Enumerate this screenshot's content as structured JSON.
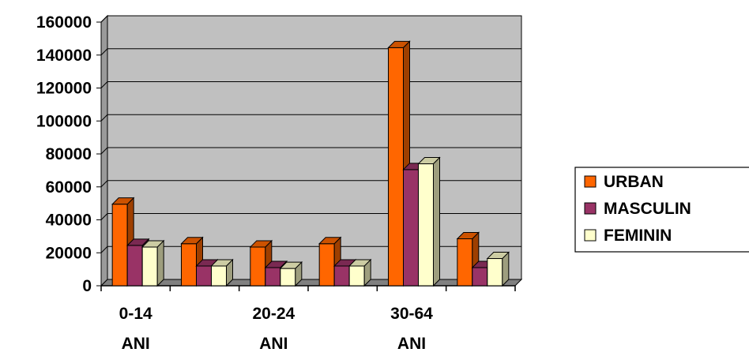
{
  "chart_data": {
    "type": "bar",
    "title": "",
    "xlabel": "",
    "ylabel": "",
    "ylim": [
      0,
      160000
    ],
    "yticks": [
      0,
      20000,
      40000,
      60000,
      80000,
      100000,
      120000,
      140000,
      160000
    ],
    "grid": true,
    "legend_position": "right",
    "categories": [
      "0-14 ANI",
      "",
      "20-24 ANI",
      "",
      "30-64 ANI",
      ""
    ],
    "series": [
      {
        "name": "URBAN",
        "color": "#FF6600",
        "values": [
          49500,
          25500,
          23500,
          25500,
          144500,
          28500
        ]
      },
      {
        "name": "MASCULIN",
        "color": "#993366",
        "values": [
          24500,
          12000,
          11000,
          12000,
          70500,
          11000
        ]
      },
      {
        "name": "FEMININ",
        "color": "#FFFFCC",
        "values": [
          23500,
          12000,
          10500,
          12000,
          74000,
          16500
        ]
      }
    ],
    "colors": {
      "plot_area": "#C0C0C0",
      "plot_floor": "#808080",
      "gridline": "#000000"
    }
  }
}
